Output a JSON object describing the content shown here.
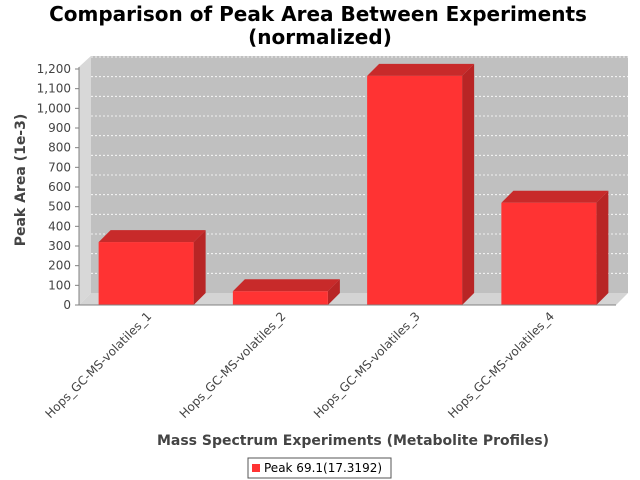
{
  "chart_data": {
    "type": "bar",
    "title_line1": "Comparison of Peak Area Between Experiments",
    "title_line2": "(normalized)",
    "xlabel": "Mass Spectrum Experiments (Metabolite Profiles)",
    "ylabel": "Peak Area (1e-3)",
    "categories": [
      "Hops_GC-MS-volatiles_1",
      "Hops_GC-MS-volatiles_2",
      "Hops_GC-MS-volatiles_3",
      "Hops_GC-MS-volatiles_4"
    ],
    "series": [
      {
        "name": "Peak 69.1(17.3192)",
        "values": [
          320,
          70,
          1165,
          520
        ],
        "color": "#ff3333"
      }
    ],
    "yticks": [
      "0",
      "100",
      "200",
      "300",
      "400",
      "500",
      "600",
      "700",
      "800",
      "900",
      "1,000",
      "1,100",
      "1,200"
    ],
    "ylim": [
      0,
      1200
    ],
    "grid": true,
    "legend": "bottom-center",
    "plot_background": "#c0c0c0"
  }
}
